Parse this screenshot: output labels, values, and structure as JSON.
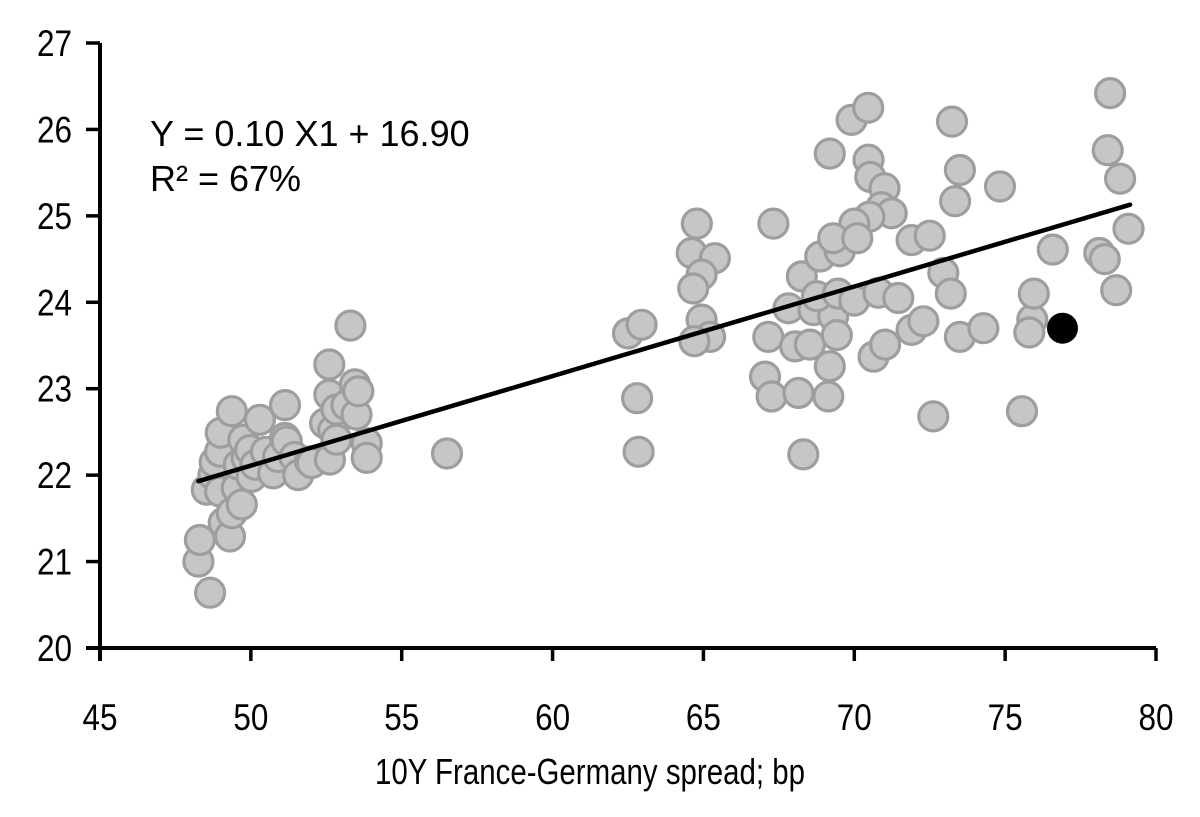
{
  "chart_data": {
    "type": "scatter",
    "title": "",
    "xlabel": "10Y France-Germany spread; bp",
    "ylabel": "",
    "annotation_line1": "Y = 0.10 X1 + 16.90",
    "annotation_line2": "R² = 67%",
    "xlim": [
      45,
      80
    ],
    "ylim": [
      20,
      27
    ],
    "x_ticks": [
      45,
      50,
      55,
      60,
      65,
      70,
      75,
      80
    ],
    "y_ticks": [
      20,
      21,
      22,
      23,
      24,
      25,
      26,
      27
    ],
    "grid": false,
    "legend": "none",
    "point_style": {
      "fill": "#c6c6c6",
      "stroke": "#9e9e9e",
      "radius_px": 14.5
    },
    "highlight_point": {
      "x": 76.9,
      "y": 23.7,
      "color": "#000000"
    },
    "trend_line": {
      "slope": 0.1036,
      "intercept": 16.93,
      "x_start": 48.26,
      "x_end": 79.14,
      "color": "#000000"
    },
    "points": [
      [
        48.26,
        21.0
      ],
      [
        48.31,
        21.25
      ],
      [
        48.54,
        21.83
      ],
      [
        48.65,
        20.64
      ],
      [
        48.76,
        22.0
      ],
      [
        48.8,
        22.15
      ],
      [
        48.98,
        21.81
      ],
      [
        48.98,
        22.27
      ],
      [
        49.0,
        22.49
      ],
      [
        49.1,
        21.45
      ],
      [
        49.31,
        21.29
      ],
      [
        49.37,
        21.56
      ],
      [
        49.37,
        22.74
      ],
      [
        49.53,
        21.85
      ],
      [
        49.6,
        22.12
      ],
      [
        49.7,
        21.66
      ],
      [
        49.75,
        22.41
      ],
      [
        49.86,
        22.2
      ],
      [
        49.97,
        22.29
      ],
      [
        50.02,
        21.98
      ],
      [
        50.15,
        22.12
      ],
      [
        50.3,
        22.64
      ],
      [
        50.5,
        22.27
      ],
      [
        50.74,
        22.02
      ],
      [
        50.9,
        22.21
      ],
      [
        51.13,
        22.81
      ],
      [
        51.13,
        22.43
      ],
      [
        51.19,
        22.39
      ],
      [
        51.45,
        22.21
      ],
      [
        51.57,
        22.0
      ],
      [
        51.96,
        22.16
      ],
      [
        52.02,
        22.14
      ],
      [
        52.46,
        22.6
      ],
      [
        52.62,
        22.18
      ],
      [
        52.6,
        23.28
      ],
      [
        52.6,
        22.93
      ],
      [
        52.73,
        22.52
      ],
      [
        52.84,
        22.76
      ],
      [
        52.84,
        22.41
      ],
      [
        53.17,
        22.81
      ],
      [
        53.3,
        23.73
      ],
      [
        53.45,
        23.05
      ],
      [
        53.5,
        22.7
      ],
      [
        53.56,
        22.97
      ],
      [
        53.84,
        22.37
      ],
      [
        53.84,
        22.2
      ],
      [
        56.5,
        22.25
      ],
      [
        62.5,
        23.64
      ],
      [
        62.95,
        23.74
      ],
      [
        62.8,
        22.89
      ],
      [
        62.85,
        22.27
      ],
      [
        64.78,
        24.91
      ],
      [
        64.61,
        24.57
      ],
      [
        65.38,
        24.51
      ],
      [
        64.94,
        24.32
      ],
      [
        64.66,
        24.16
      ],
      [
        64.94,
        23.8
      ],
      [
        65.22,
        23.6
      ],
      [
        64.7,
        23.55
      ],
      [
        67.15,
        23.6
      ],
      [
        67.82,
        23.93
      ],
      [
        68.65,
        23.91
      ],
      [
        69.3,
        23.84
      ],
      [
        68.04,
        23.49
      ],
      [
        68.53,
        23.51
      ],
      [
        69.42,
        23.62
      ],
      [
        69.19,
        23.26
      ],
      [
        67.04,
        23.14
      ],
      [
        67.26,
        22.91
      ],
      [
        68.15,
        22.95
      ],
      [
        69.14,
        22.91
      ],
      [
        68.31,
        22.24
      ],
      [
        70.64,
        23.37
      ],
      [
        71.02,
        23.51
      ],
      [
        71.9,
        23.68
      ],
      [
        72.29,
        23.78
      ],
      [
        67.32,
        24.91
      ],
      [
        68.26,
        24.3
      ],
      [
        68.87,
        24.53
      ],
      [
        69.52,
        24.59
      ],
      [
        68.76,
        24.07
      ],
      [
        69.46,
        24.1
      ],
      [
        70.0,
        24.02
      ],
      [
        70.8,
        24.11
      ],
      [
        71.46,
        24.05
      ],
      [
        69.91,
        26.11
      ],
      [
        70.46,
        26.25
      ],
      [
        69.19,
        25.72
      ],
      [
        70.47,
        25.65
      ],
      [
        70.53,
        25.45
      ],
      [
        71.0,
        25.32
      ],
      [
        70.9,
        25.1
      ],
      [
        71.24,
        25.03
      ],
      [
        70.5,
        24.99
      ],
      [
        70.0,
        24.91
      ],
      [
        69.3,
        24.74
      ],
      [
        70.1,
        24.74
      ],
      [
        71.9,
        24.72
      ],
      [
        72.5,
        24.77
      ],
      [
        73.24,
        26.09
      ],
      [
        73.5,
        25.53
      ],
      [
        73.34,
        25.17
      ],
      [
        74.83,
        25.34
      ],
      [
        73.5,
        23.6
      ],
      [
        74.28,
        23.7
      ],
      [
        72.95,
        24.34
      ],
      [
        73.2,
        24.1
      ],
      [
        72.62,
        22.68
      ],
      [
        75.56,
        22.74
      ],
      [
        75.9,
        23.8
      ],
      [
        75.8,
        23.65
      ],
      [
        75.95,
        24.1
      ],
      [
        78.48,
        26.42
      ],
      [
        78.4,
        25.76
      ],
      [
        78.81,
        25.43
      ],
      [
        79.09,
        24.85
      ],
      [
        78.12,
        24.57
      ],
      [
        78.3,
        24.5
      ],
      [
        76.58,
        24.61
      ],
      [
        78.68,
        24.14
      ]
    ]
  }
}
